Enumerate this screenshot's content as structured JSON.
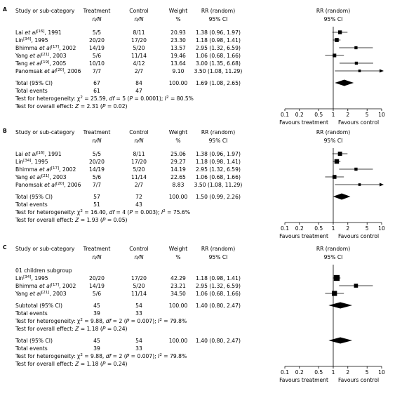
{
  "columns": [
    "Study or sub-category",
    "Treatment",
    "Control",
    "Weight",
    "RR (random)",
    "RR (random)"
  ],
  "subcolumns": [
    {
      "text": "n/N",
      "italic": true
    },
    {
      "text": "n/N",
      "italic": true
    },
    {
      "text": "%",
      "italic": false
    },
    {
      "text": "95% CI",
      "italic": false
    },
    {
      "text": "95% CI",
      "italic": false
    }
  ],
  "axis": {
    "log": true,
    "xlim": [
      0.1,
      10
    ],
    "xticks": [
      0.1,
      0.2,
      0.5,
      1,
      2,
      5,
      10
    ],
    "reference": 1,
    "left_label": "Favours treatment",
    "right_label": "Favours control",
    "color": "#000000"
  },
  "panels": [
    {
      "letter": "A",
      "rows": [
        {
          "kind": "study",
          "author": "Lai ",
          "etal": "et al",
          "ref": "[16]",
          "year": ", 1991",
          "treatment": "5/5",
          "control": "8/11",
          "weight": "20.93",
          "ci_text": "1.38 (0.96, 1.97)",
          "rr": 1.38,
          "ci": [
            0.96,
            1.97
          ]
        },
        {
          "kind": "study",
          "author": "Lin",
          "ref": "[34]",
          "year": ", 1995",
          "treatment": "20/20",
          "control": "17/20",
          "weight": "23.30",
          "ci_text": "1.18 (0.98, 1.41)",
          "rr": 1.18,
          "ci": [
            0.98,
            1.41
          ]
        },
        {
          "kind": "study",
          "author": "Bhimma ",
          "etal": "et al",
          "ref": "[17]",
          "year": ", 2002",
          "treatment": "14/19",
          "control": "5/20",
          "weight": "13.57",
          "ci_text": "2.95 (1.32, 6.59)",
          "rr": 2.95,
          "ci": [
            1.32,
            6.59
          ]
        },
        {
          "kind": "study",
          "author": "Yang ",
          "etal": "et al",
          "ref": "[21]",
          "year": ", 2003",
          "treatment": "5/6",
          "control": "11/14",
          "weight": "19.46",
          "ci_text": "1.06 (0.68, 1.66)",
          "rr": 1.06,
          "ci": [
            0.68,
            1.66
          ]
        },
        {
          "kind": "study",
          "author": "Tang ",
          "etal": "et al",
          "ref": "[19]",
          "year": ", 2005",
          "treatment": "10/10",
          "control": "4/12",
          "weight": "13.64",
          "ci_text": "3.00 (1.35, 6.68)",
          "rr": 3,
          "ci": [
            1.35,
            6.68
          ]
        },
        {
          "kind": "study",
          "author": "Panomsak ",
          "etal": "et al",
          "ref": "[20]",
          "year": ", 2006",
          "treatment": "7/7",
          "control": "2/7",
          "weight": "9.10",
          "ci_text": "3.50 (1.08, 11.29)",
          "rr": 3.5,
          "ci": [
            1.08,
            11.29
          ]
        },
        {
          "kind": "total",
          "label": "Total (95% CI)",
          "treatment": "67",
          "control": "84",
          "weight": "100.00",
          "ci_text": "1.69 (1.08, 2.65)",
          "rr": 1.69,
          "ci": [
            1.08,
            2.65
          ]
        },
        {
          "kind": "events",
          "label": "Total events",
          "treatment": "61",
          "control": "47"
        },
        {
          "kind": "test",
          "parts": [
            [
              "Test for heterogeneity: χ",
              "n"
            ],
            [
              "2",
              "sup"
            ],
            [
              " = 25.59, ",
              "n"
            ],
            [
              "df",
              "i"
            ],
            [
              " = 5 (",
              "n"
            ],
            [
              "P",
              "i"
            ],
            [
              " = 0.0001); ",
              "n"
            ],
            [
              "I",
              "i"
            ],
            [
              "2",
              "sup"
            ],
            [
              " = 80.5%",
              "n"
            ]
          ]
        },
        {
          "kind": "test",
          "parts": [
            [
              "Test for overall effect: ",
              "n"
            ],
            [
              "Z",
              "i"
            ],
            [
              " = 2.31 (",
              "n"
            ],
            [
              "P",
              "i"
            ],
            [
              " = 0.02)",
              "n"
            ]
          ]
        }
      ]
    },
    {
      "letter": "B",
      "rows": [
        {
          "kind": "study",
          "author": "Lai ",
          "etal": "et al",
          "ref": "[16]",
          "year": ", 1991",
          "treatment": "5/5",
          "control": "8/11",
          "weight": "25.06",
          "ci_text": "1.38 (0.96, 1.97)",
          "rr": 1.38,
          "ci": [
            0.96,
            1.97
          ]
        },
        {
          "kind": "study",
          "author": "Lin",
          "ref": "[34]",
          "year": ", 1995",
          "treatment": "20/20",
          "control": "17/20",
          "weight": "29.27",
          "ci_text": "1.18 (0.98, 1.41)",
          "rr": 1.18,
          "ci": [
            0.98,
            1.41
          ]
        },
        {
          "kind": "study",
          "author": "Bhimma ",
          "etal": "et al",
          "ref": "[17]",
          "year": ", 2002",
          "treatment": "14/19",
          "control": "5/20",
          "weight": "14.19",
          "ci_text": "2.95 (1.32, 6.59)",
          "rr": 2.95,
          "ci": [
            1.32,
            6.59
          ]
        },
        {
          "kind": "study",
          "author": "Yang ",
          "etal": "et al",
          "ref": "[21]",
          "year": ", 2003",
          "treatment": "5/6",
          "control": "11/14",
          "weight": "22.65",
          "ci_text": "1.06 (0.68, 1.66)",
          "rr": 1.06,
          "ci": [
            0.68,
            1.66
          ]
        },
        {
          "kind": "study",
          "author": "Panomsak ",
          "etal": "et al",
          "ref": "[20]",
          "year": ", 2006",
          "treatment": "7/7",
          "control": "2/7",
          "weight": "8.83",
          "ci_text": "3.50 (1.08, 11.29)",
          "rr": 3.5,
          "ci": [
            1.08,
            11.29
          ]
        },
        {
          "kind": "total",
          "label": "Total (95% CI)",
          "treatment": "57",
          "control": "72",
          "weight": "100.00",
          "ci_text": "1.50 (0.99, 2.26)",
          "rr": 1.5,
          "ci": [
            0.99,
            2.26
          ]
        },
        {
          "kind": "events",
          "label": "Total events",
          "treatment": "51",
          "control": "43"
        },
        {
          "kind": "test",
          "parts": [
            [
              "Test for heterogeneity: χ",
              "n"
            ],
            [
              "2",
              "sup"
            ],
            [
              " = 16.40, ",
              "n"
            ],
            [
              "df",
              "i"
            ],
            [
              " = 4 (",
              "n"
            ],
            [
              "P",
              "i"
            ],
            [
              " = 0.003); ",
              "n"
            ],
            [
              "I",
              "i"
            ],
            [
              "2",
              "sup"
            ],
            [
              " = 75.6%",
              "n"
            ]
          ]
        },
        {
          "kind": "test",
          "parts": [
            [
              "Test for overall effect: ",
              "n"
            ],
            [
              "Z",
              "i"
            ],
            [
              " = 1.93 (",
              "n"
            ],
            [
              "P",
              "i"
            ],
            [
              " = 0.05)",
              "n"
            ]
          ]
        }
      ]
    },
    {
      "letter": "C",
      "rows": [
        {
          "kind": "heading",
          "label": "01 children subgroup"
        },
        {
          "kind": "study",
          "author": "Lin",
          "ref": "[34]",
          "year": ", 1995",
          "treatment": "20/20",
          "control": "17/20",
          "weight": "42.29",
          "ci_text": "1.18 (0.98, 1.41)",
          "rr": 1.18,
          "ci": [
            0.98,
            1.41
          ]
        },
        {
          "kind": "study",
          "author": "Bhimma ",
          "etal": "et al",
          "ref": "[17]",
          "year": ", 2002",
          "treatment": "14/19",
          "control": "5/20",
          "weight": "23.21",
          "ci_text": "2.95 (1.32, 6.59)",
          "rr": 2.95,
          "ci": [
            1.32,
            6.59
          ]
        },
        {
          "kind": "study",
          "author": "Yang ",
          "etal": "et al",
          "ref": "[21]",
          "year": ", 2003",
          "treatment": "5/6",
          "control": "11/14",
          "weight": "34.50",
          "ci_text": "1.06 (0.68, 1.66)",
          "rr": 1.06,
          "ci": [
            0.68,
            1.66
          ]
        },
        {
          "kind": "total",
          "label": "Subtotal (95% CI)",
          "treatment": "45",
          "control": "54",
          "weight": "100.00",
          "ci_text": "1.40 (0.80, 2.47)",
          "rr": 1.4,
          "ci": [
            0.8,
            2.47
          ]
        },
        {
          "kind": "events",
          "label": "Total events",
          "treatment": "39",
          "control": "33"
        },
        {
          "kind": "test",
          "parts": [
            [
              "Test for heterogeneity: χ",
              "n"
            ],
            [
              "2",
              "sup"
            ],
            [
              " = 9.88, ",
              "n"
            ],
            [
              "df",
              "i"
            ],
            [
              " = 2 (",
              "n"
            ],
            [
              "P",
              "i"
            ],
            [
              " = 0.007); ",
              "n"
            ],
            [
              "I",
              "i"
            ],
            [
              "2",
              "sup"
            ],
            [
              " = 79.8%",
              "n"
            ]
          ]
        },
        {
          "kind": "test",
          "parts": [
            [
              "Test for overall effect: ",
              "n"
            ],
            [
              "Z",
              "i"
            ],
            [
              " = 1.18 (",
              "n"
            ],
            [
              "P",
              "i"
            ],
            [
              " = 0.24)",
              "n"
            ]
          ]
        },
        {
          "kind": "total",
          "label": "Total (95% CI)",
          "treatment": "45",
          "control": "54",
          "weight": "100.00",
          "ci_text": "1.40 (0.80, 2.47)",
          "rr": 1.4,
          "ci": [
            0.8,
            2.47
          ]
        },
        {
          "kind": "events",
          "label": "Total events",
          "treatment": "39",
          "control": "33"
        },
        {
          "kind": "test",
          "parts": [
            [
              "Test for heterogeneity: χ",
              "n"
            ],
            [
              "2",
              "sup"
            ],
            [
              " = 9.88, ",
              "n"
            ],
            [
              "df",
              "i"
            ],
            [
              " = 2 (",
              "n"
            ],
            [
              "P",
              "i"
            ],
            [
              " = 0.007); ",
              "n"
            ],
            [
              "I",
              "i"
            ],
            [
              "2",
              "sup"
            ],
            [
              " = 79.8%",
              "n"
            ]
          ]
        },
        {
          "kind": "test",
          "parts": [
            [
              "Test for overall effect: ",
              "n"
            ],
            [
              "Z",
              "i"
            ],
            [
              " = 1.18 (",
              "n"
            ],
            [
              "P",
              "i"
            ],
            [
              " = 0.24)",
              "n"
            ]
          ]
        }
      ]
    }
  ]
}
